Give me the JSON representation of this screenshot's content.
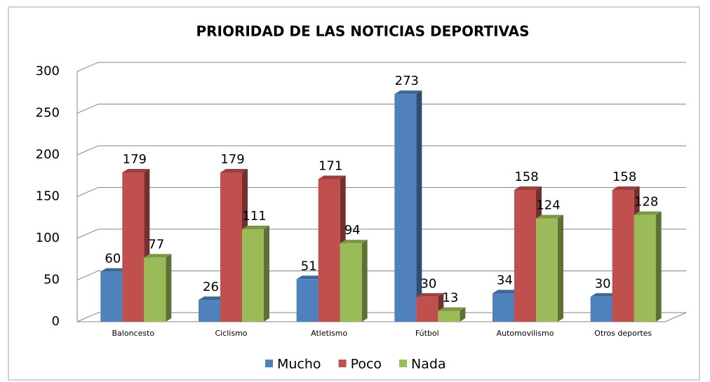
{
  "chart_data": {
    "type": "bar3d",
    "title": "PRIORIDAD DE LAS NOTICIAS  DEPORTIVAS",
    "categories": [
      "Baloncesto",
      "Ciclismo",
      "Atletismo",
      "Fútbol",
      "Automovilismo",
      "Otros deportes"
    ],
    "series": [
      {
        "name": "Mucho",
        "color": "#4f81bd",
        "values": [
          60,
          26,
          51,
          273,
          34,
          30
        ]
      },
      {
        "name": "Poco",
        "color": "#c0504d",
        "values": [
          179,
          179,
          171,
          30,
          158,
          158
        ]
      },
      {
        "name": "Nada",
        "color": "#9bbb59",
        "values": [
          77,
          111,
          94,
          13,
          124,
          128
        ]
      }
    ],
    "ylim": [
      0,
      300
    ],
    "yticks": [
      0,
      50,
      100,
      150,
      200,
      250,
      300
    ],
    "grid": true,
    "legend": "bottom"
  }
}
